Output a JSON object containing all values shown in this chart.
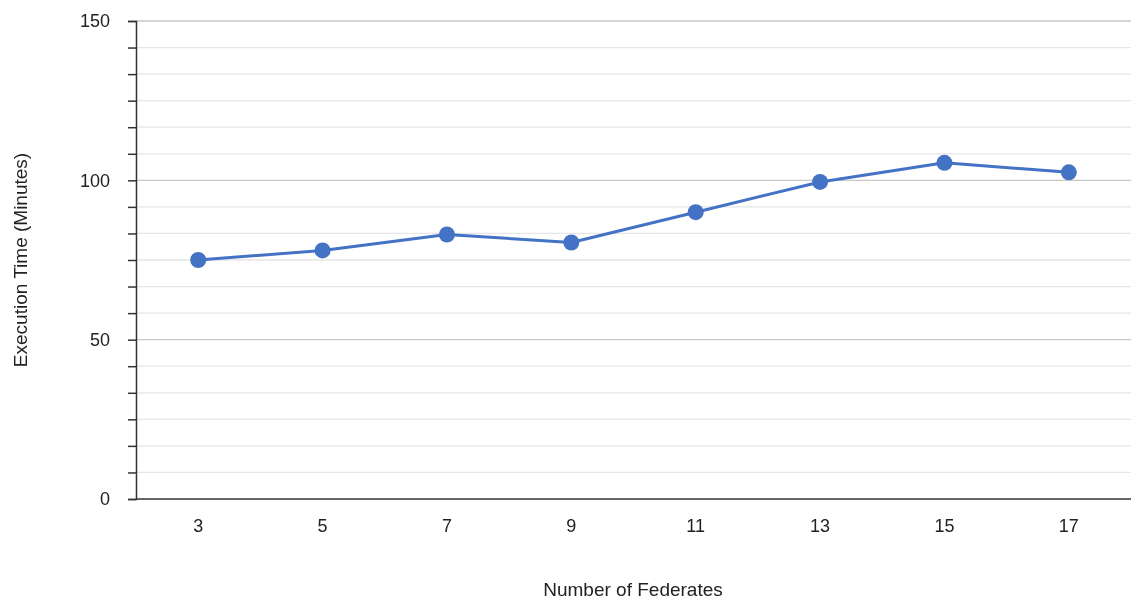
{
  "chart_data": {
    "type": "line",
    "xlabel": "Number of Federates",
    "ylabel": "Execution Time (Minutes)",
    "categories": [
      "3",
      "5",
      "7",
      "9",
      "11",
      "13",
      "15",
      "17"
    ],
    "series": [
      {
        "color": "#4472c4",
        "values": [
          75,
          78,
          83,
          80.5,
          90,
          99.5,
          105.5,
          102.5
        ]
      }
    ],
    "ylim": [
      0,
      150
    ],
    "yticks": [
      0,
      {
        "value": 8.33,
        "label": null
      },
      {
        "value": 16.67,
        "label": null
      },
      {
        "value": 25,
        "label": null
      },
      {
        "value": 33.33,
        "label": null
      },
      {
        "value": 41.67,
        "label": null
      },
      50,
      {
        "value": 58.33,
        "label": null
      },
      {
        "value": 66.67,
        "label": null
      },
      {
        "value": 75,
        "label": null
      },
      {
        "value": 83.33,
        "label": null
      },
      {
        "value": 91.67,
        "label": null
      },
      100,
      {
        "value": 108.33,
        "label": null
      },
      {
        "value": 116.67,
        "label": null
      },
      {
        "value": 125,
        "label": null
      },
      {
        "value": 133.33,
        "label": null
      },
      {
        "value": 141.67,
        "label": null
      },
      150
    ],
    "grid": "y",
    "marker": "circle",
    "line_style": "solid"
  }
}
